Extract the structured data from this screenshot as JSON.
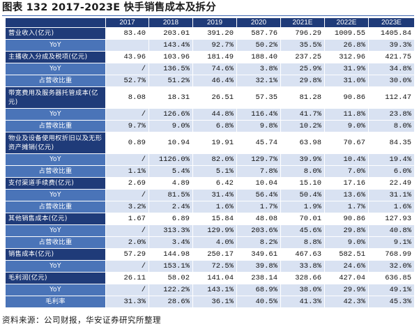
{
  "title": "图表 132 2017-2023E 快手销售成本及拆分",
  "columns": [
    "",
    "2017",
    "2018",
    "2019",
    "2020",
    "2021E",
    "2022E",
    "2023E"
  ],
  "rows": [
    {
      "label": "营业收入(亿元)",
      "type": "main",
      "cells": [
        "83.40",
        "203.01",
        "391.20",
        "587.76",
        "796.29",
        "1009.55",
        "1405.84"
      ]
    },
    {
      "label": "YoY",
      "type": "sub",
      "cells": [
        "",
        "143.4%",
        "92.7%",
        "50.2%",
        "35.5%",
        "26.8%",
        "39.3%"
      ]
    },
    {
      "label": "主播收入分成及税项(亿元)",
      "type": "main",
      "cells": [
        "43.96",
        "103.96",
        "181.49",
        "188.40",
        "237.25",
        "312.96",
        "421.75"
      ]
    },
    {
      "label": "YoY",
      "type": "sub",
      "cells": [
        "/",
        "136.5%",
        "74.6%",
        "3.8%",
        "25.9%",
        "31.9%",
        "34.8%"
      ]
    },
    {
      "label": "占营收比重",
      "type": "sub",
      "cells": [
        "52.7%",
        "51.2%",
        "46.4%",
        "32.1%",
        "29.8%",
        "31.0%",
        "30.0%"
      ]
    },
    {
      "label": "带宽费用及服务器托管成本(亿元)",
      "type": "main",
      "tall": true,
      "cells": [
        "8.08",
        "18.31",
        "26.51",
        "57.35",
        "81.28",
        "90.86",
        "112.47"
      ]
    },
    {
      "label": "YoY",
      "type": "sub",
      "cells": [
        "/",
        "126.6%",
        "44.8%",
        "116.4%",
        "41.7%",
        "11.8%",
        "23.8%"
      ]
    },
    {
      "label": "占营收比重",
      "type": "sub",
      "cells": [
        "9.7%",
        "9.0%",
        "6.8%",
        "9.8%",
        "10.2%",
        "9.0%",
        "8.0%"
      ]
    },
    {
      "label": "物业及设备使用权折旧以及无形资产摊销(亿元)",
      "type": "main",
      "tall": true,
      "cells": [
        "0.89",
        "10.94",
        "19.91",
        "45.74",
        "63.98",
        "70.67",
        "84.35"
      ]
    },
    {
      "label": "YoY",
      "type": "sub",
      "cells": [
        "/",
        "1126.0%",
        "82.0%",
        "129.7%",
        "39.9%",
        "10.4%",
        "19.4%"
      ]
    },
    {
      "label": "占营收比重",
      "type": "sub",
      "cells": [
        "1.1%",
        "5.4%",
        "5.1%",
        "7.8%",
        "8.0%",
        "7.0%",
        "6.0%"
      ]
    },
    {
      "label": "支付渠道手续费(亿元)",
      "type": "main",
      "cells": [
        "2.69",
        "4.89",
        "6.42",
        "10.04",
        "15.10",
        "17.16",
        "22.49"
      ]
    },
    {
      "label": "YoY",
      "type": "sub",
      "cells": [
        "/",
        "81.5%",
        "31.4%",
        "56.4%",
        "50.4%",
        "13.6%",
        "31.1%"
      ]
    },
    {
      "label": "占营收比重",
      "type": "sub",
      "cells": [
        "3.2%",
        "2.4%",
        "1.6%",
        "1.7%",
        "1.9%",
        "1.7%",
        "1.6%"
      ]
    },
    {
      "label": "其他销售成本(亿元)",
      "type": "main",
      "cells": [
        "1.67",
        "6.89",
        "15.84",
        "48.08",
        "70.01",
        "90.86",
        "127.93"
      ]
    },
    {
      "label": "YoY",
      "type": "sub",
      "cells": [
        "/",
        "313.3%",
        "129.9%",
        "203.6%",
        "45.6%",
        "29.8%",
        "40.8%"
      ]
    },
    {
      "label": "占营收比重",
      "type": "sub",
      "cells": [
        "2.0%",
        "3.4%",
        "4.0%",
        "8.2%",
        "8.8%",
        "9.0%",
        "9.1%"
      ]
    },
    {
      "label": "销售成本(亿元)",
      "type": "main",
      "cells": [
        "57.29",
        "144.98",
        "250.17",
        "349.61",
        "467.63",
        "582.51",
        "768.99"
      ]
    },
    {
      "label": "YoY",
      "type": "sub",
      "cells": [
        "/",
        "153.1%",
        "72.5%",
        "39.8%",
        "33.8%",
        "24.6%",
        "32.0%"
      ]
    },
    {
      "label": "毛利润(亿元)",
      "type": "main",
      "cells": [
        "26.11",
        "58.02",
        "141.04",
        "238.14",
        "328.66",
        "427.04",
        "636.85"
      ]
    },
    {
      "label": "YoY",
      "type": "sub",
      "cells": [
        "/",
        "122.2%",
        "143.1%",
        "68.9%",
        "38.0%",
        "29.9%",
        "49.1%"
      ]
    },
    {
      "label": "毛利率",
      "type": "sub",
      "cells": [
        "31.3%",
        "28.6%",
        "36.1%",
        "40.5%",
        "41.3%",
        "42.3%",
        "45.3%"
      ]
    }
  ],
  "source": "资料来源：公司财报，华安证券研究所整理",
  "colors": {
    "header_bg": "#1f3b79",
    "sub_label_bg": "#4a74b8",
    "sub_row_bg": "#d9e2f2",
    "title_rule": "#3d66b0"
  }
}
